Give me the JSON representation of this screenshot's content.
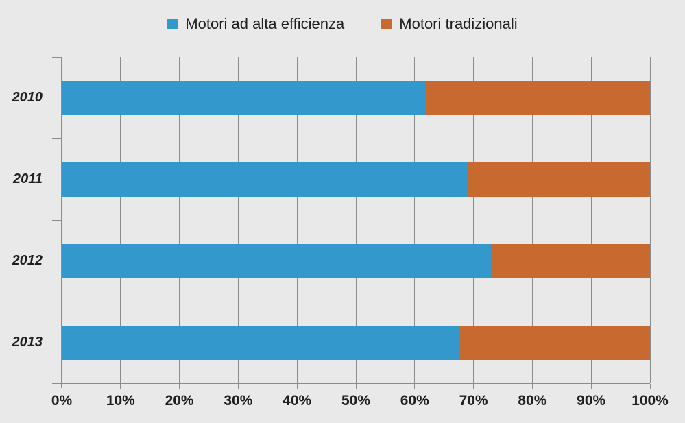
{
  "page": {
    "background": "#E9E9E9"
  },
  "legend": {
    "items": [
      {
        "label": "Motori ad alta efficienza",
        "color": "#3398CB"
      },
      {
        "label": "Motori tradizionali",
        "color": "#C8692F"
      }
    ]
  },
  "chart_data": {
    "type": "bar",
    "orientation": "horizontal",
    "stacked": true,
    "stacked_total": 100,
    "title": "",
    "xlabel": "",
    "ylabel": "",
    "categories": [
      "2010",
      "2011",
      "2012",
      "2013"
    ],
    "series": [
      {
        "name": "Motori ad alta efficienza",
        "color": "#3398CB",
        "values": [
          62,
          69,
          73,
          67.5
        ]
      },
      {
        "name": "Motori tradizionali",
        "color": "#C8692F",
        "values": [
          38,
          31,
          27,
          32.5
        ]
      }
    ],
    "x_axis": {
      "min": 0,
      "max": 100,
      "tick_step": 10,
      "tick_labels": [
        "0%",
        "10%",
        "20%",
        "30%",
        "40%",
        "50%",
        "60%",
        "70%",
        "80%",
        "90%",
        "100%"
      ]
    },
    "grid": "vertical-only",
    "legend_position": "top-center",
    "colors": {
      "gridline": "#8C8C8C",
      "axis": "#8C8C8C",
      "text": "#1F1F1F"
    }
  }
}
